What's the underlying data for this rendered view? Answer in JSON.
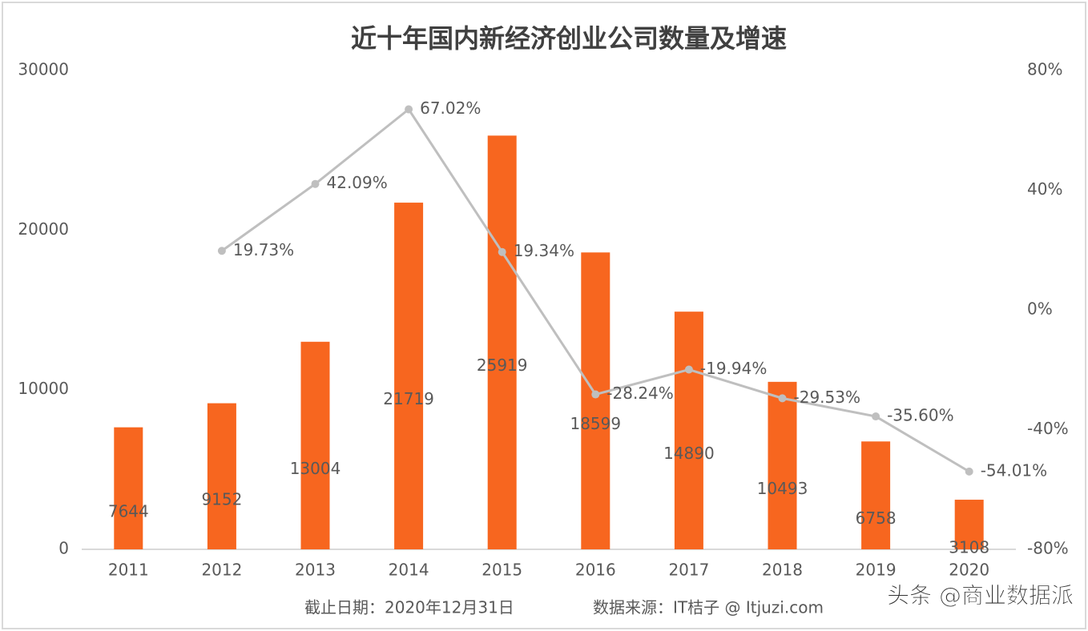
{
  "chart_data": {
    "type": "bar",
    "title": "近十年国内新经济创业公司数量及增速",
    "categories": [
      "2011",
      "2012",
      "2013",
      "2014",
      "2015",
      "2016",
      "2017",
      "2018",
      "2019",
      "2020"
    ],
    "series": [
      {
        "name": "创业公司数量",
        "type": "bar",
        "color": "#f7661f",
        "values": [
          7644,
          9152,
          13004,
          21719,
          25919,
          18599,
          14890,
          10493,
          6758,
          3108
        ]
      },
      {
        "name": "增速",
        "type": "line",
        "axis": "y2",
        "color": "#bfbfbf",
        "values": [
          null,
          19.73,
          42.09,
          67.02,
          19.34,
          -28.24,
          -19.94,
          -29.53,
          -35.6,
          -54.01
        ],
        "value_labels": [
          null,
          "19.73%",
          "42.09%",
          "67.02%",
          "19.34%",
          "-28.24%",
          "-19.94%",
          "-29.53%",
          "-35.60%",
          "-54.01%"
        ]
      }
    ],
    "ylim": [
      0,
      30000
    ],
    "yticks": [
      0,
      10000,
      20000,
      30000
    ],
    "y2lim": [
      -80,
      80
    ],
    "y2ticks": [
      {
        "value": -80,
        "label": "-80%"
      },
      {
        "value": -40,
        "label": "-40%"
      },
      {
        "value": 0,
        "label": "0%"
      },
      {
        "value": 40,
        "label": "40%"
      },
      {
        "value": 80,
        "label": "80%"
      }
    ],
    "footnotes": [
      "截止日期：2020年12月31日",
      "数据来源：IT桔子 @ Itjuzi.com"
    ],
    "watermark": "头条 @商业数据派"
  }
}
